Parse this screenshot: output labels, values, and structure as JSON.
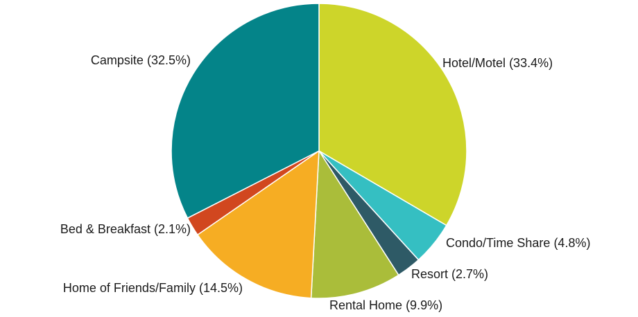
{
  "chart_data": {
    "type": "pie",
    "categories": [
      "Hotel/Motel",
      "Condo/Time Share",
      "Resort",
      "Rental Home",
      "Home of Friends/Family",
      "Bed & Breakfast",
      "Campsite"
    ],
    "values": [
      33.4,
      4.8,
      2.7,
      9.9,
      14.5,
      2.1,
      32.5
    ],
    "value_labels": [
      "(33.4%)",
      "(4.8%)",
      "(2.7%)",
      "(9.9%)",
      "(14.5%)",
      "(2.1%)",
      "(32.5%)"
    ],
    "colors": [
      "#cdd52a",
      "#35bfc2",
      "#2e5a66",
      "#aabd3a",
      "#f6ad23",
      "#d1471f",
      "#048489"
    ]
  }
}
